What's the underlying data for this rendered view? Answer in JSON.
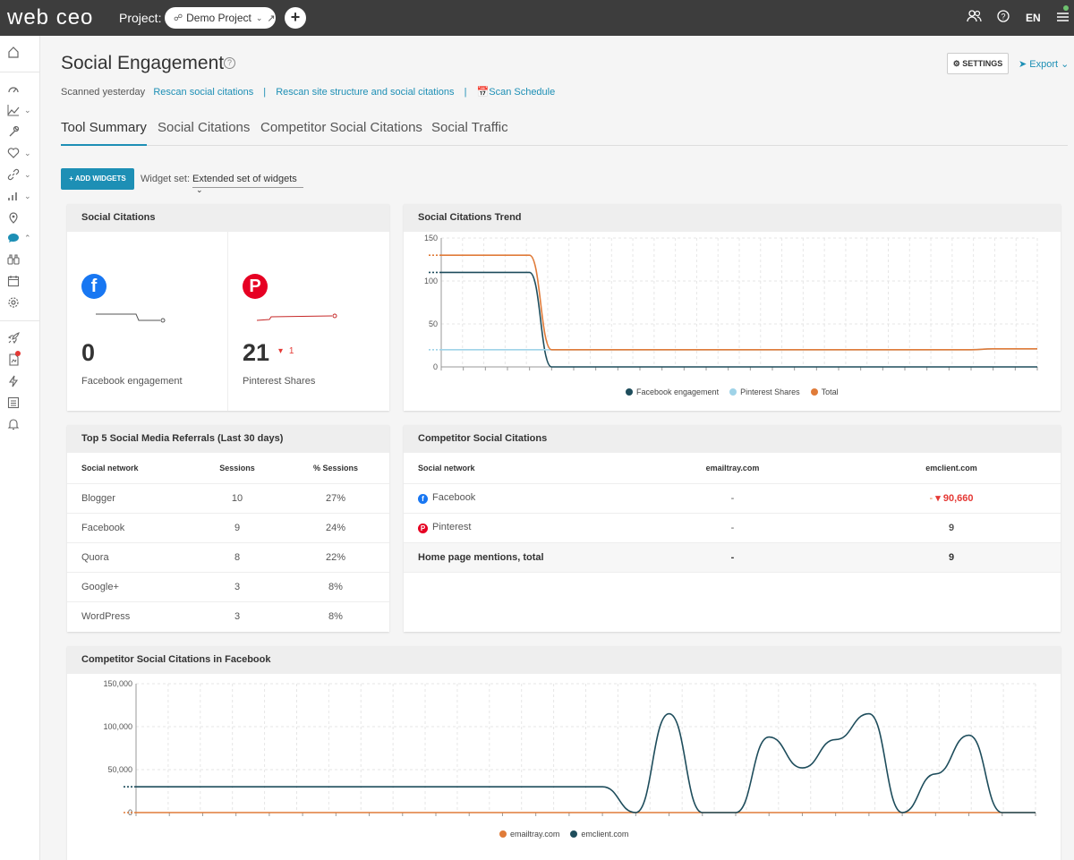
{
  "topbar": {
    "logo": "web ceo",
    "project_label": "Project:",
    "project_name": "Demo Project",
    "add_label": "+",
    "lang": "EN"
  },
  "header": {
    "title": "Social Engagement",
    "help": "?",
    "settings": "SETTINGS",
    "export": "Export",
    "scanned": "Scanned yesterday",
    "rescan_citations": "Rescan social citations",
    "rescan_site": "Rescan site structure and social citations",
    "scan_schedule": "Scan Schedule",
    "separator": "|"
  },
  "tabs": [
    {
      "label": "Tool Summary"
    },
    {
      "label": "Social Citations"
    },
    {
      "label": "Competitor Social Citations"
    },
    {
      "label": "Social Traffic"
    }
  ],
  "toolbar": {
    "add_widgets": "+ ADD WIDGETS",
    "widget_set_label": "Widget set:",
    "widget_set_value": "Extended set of widgets"
  },
  "citations": {
    "title": "Social Citations",
    "facebook": {
      "value": "0",
      "label": "Facebook engagement"
    },
    "pinterest": {
      "value": "21",
      "delta": "1",
      "label": "Pinterest Shares"
    }
  },
  "trend": {
    "title": "Social Citations Trend"
  },
  "referrals": {
    "title": "Top 5 Social Media Referrals (Last 30 days)",
    "columns": [
      "Social network",
      "Sessions",
      "% Sessions"
    ],
    "rows": [
      {
        "network": "Blogger",
        "sessions": "10",
        "pct": "27%"
      },
      {
        "network": "Facebook",
        "sessions": "9",
        "pct": "24%"
      },
      {
        "network": "Quora",
        "sessions": "8",
        "pct": "22%"
      },
      {
        "network": "Google+",
        "sessions": "3",
        "pct": "8%"
      },
      {
        "network": "WordPress",
        "sessions": "3",
        "pct": "8%"
      }
    ]
  },
  "competitor": {
    "title": "Competitor Social Citations",
    "columns": [
      "Social network",
      "emailtray.com",
      "emclient.com"
    ],
    "rows": [
      {
        "network": "Facebook",
        "a": "-",
        "b_prefix": "-",
        "b": "90,660"
      },
      {
        "network": "Pinterest",
        "a": "-",
        "b": "9"
      }
    ],
    "total": {
      "label": "Home page mentions, total",
      "a": "-",
      "b": "9"
    }
  },
  "comp_fb": {
    "title": "Competitor Social Citations in Facebook"
  },
  "colors": {
    "accent": "#1d8fb5",
    "facebook": "#1877f2",
    "pinterest": "#e60023",
    "series_dark": "#1e4d5c",
    "series_light": "#9fd3e8",
    "series_orange": "#e07b39"
  },
  "chart_data": [
    {
      "type": "line",
      "title": "Social Citations Trend",
      "ylim": [
        0,
        150
      ],
      "yticks": [
        "150",
        "100",
        "50",
        "0"
      ],
      "grid": true,
      "legend_position": "bottom",
      "x": [
        0,
        1,
        2,
        3,
        4,
        5,
        6,
        7,
        8,
        9,
        10,
        11,
        12,
        13,
        14,
        15,
        16,
        17,
        18,
        19,
        20,
        21,
        22,
        23,
        24,
        25,
        26,
        27
      ],
      "series": [
        {
          "name": "Facebook engagement",
          "color": "#1e4d5c",
          "values": [
            110,
            110,
            110,
            110,
            110,
            0,
            0,
            0,
            0,
            0,
            0,
            0,
            0,
            0,
            0,
            0,
            0,
            0,
            0,
            0,
            0,
            0,
            0,
            0,
            0,
            0,
            0,
            0
          ]
        },
        {
          "name": "Pinterest Shares",
          "color": "#9fd3e8",
          "values": [
            20,
            20,
            20,
            20,
            20,
            20,
            20,
            20,
            20,
            20,
            20,
            20,
            20,
            20,
            20,
            20,
            20,
            20,
            20,
            20,
            20,
            20,
            20,
            20,
            20,
            21,
            21,
            21
          ]
        },
        {
          "name": "Total",
          "color": "#e07b39",
          "values": [
            130,
            130,
            130,
            130,
            130,
            20,
            20,
            20,
            20,
            20,
            20,
            20,
            20,
            20,
            20,
            20,
            20,
            20,
            20,
            20,
            20,
            20,
            20,
            20,
            20,
            21,
            21,
            21
          ]
        }
      ]
    },
    {
      "type": "line",
      "title": "Competitor Social Citations in Facebook",
      "ylim": [
        0,
        150000
      ],
      "yticks": [
        "150,000",
        "100,000",
        "50,000",
        "0"
      ],
      "grid": true,
      "legend_position": "bottom",
      "x": [
        0,
        1,
        2,
        3,
        4,
        5,
        6,
        7,
        8,
        9,
        10,
        11,
        12,
        13,
        14,
        15,
        16,
        17,
        18,
        19,
        20,
        21,
        22,
        23,
        24,
        25,
        26,
        27
      ],
      "series": [
        {
          "name": "emailtray.com",
          "color": "#e07b39",
          "values": [
            0,
            0,
            0,
            0,
            0,
            0,
            0,
            0,
            0,
            0,
            0,
            0,
            0,
            0,
            0,
            0,
            0,
            0,
            0,
            0,
            0,
            0,
            0,
            0,
            0,
            0,
            0,
            0
          ]
        },
        {
          "name": "emclient.com",
          "color": "#1e4d5c",
          "values": [
            30000,
            30000,
            30000,
            30000,
            30000,
            30000,
            30000,
            30000,
            30000,
            30000,
            30000,
            30000,
            30000,
            30000,
            30000,
            0,
            115000,
            0,
            0,
            88000,
            52000,
            85000,
            115000,
            0,
            45000,
            90000,
            0,
            0
          ]
        }
      ]
    }
  ]
}
